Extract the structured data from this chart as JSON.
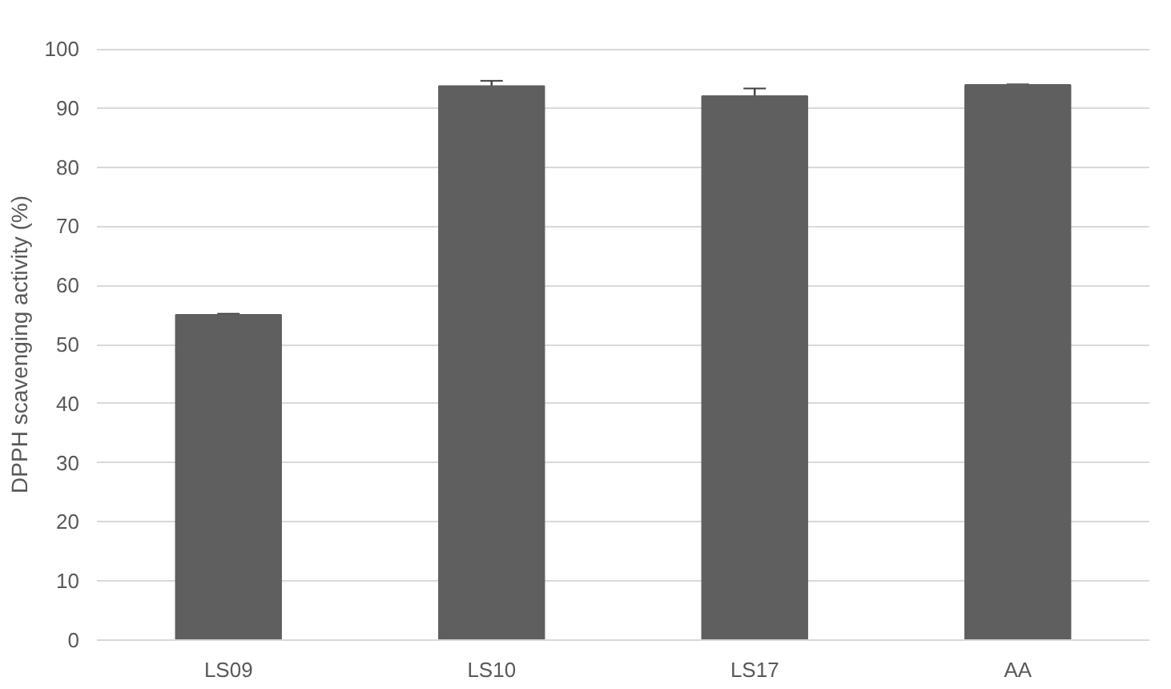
{
  "chart_data": {
    "type": "bar",
    "ylabel": "DPPH scavenging activity (%)",
    "categories": [
      "LS09",
      "LS10",
      "LS17",
      "AA"
    ],
    "values": [
      55,
      93.7,
      92,
      93.9
    ],
    "errors": [
      0.2,
      0.9,
      1.3,
      0.1
    ],
    "color": "#5f5f5f",
    "ylim": [
      0,
      100
    ],
    "yticks": [
      0,
      10,
      20,
      30,
      40,
      50,
      60,
      70,
      80,
      90,
      100
    ],
    "grid": "y"
  }
}
